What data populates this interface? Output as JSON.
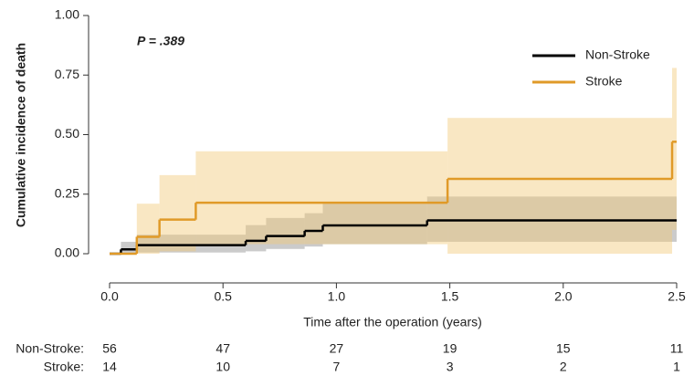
{
  "chart_data": {
    "type": "step",
    "annotation": "P = .389",
    "xlabel": "Time after the operation (years)",
    "ylabel": "Cumulative incidence of death",
    "xlim": [
      0,
      2.5
    ],
    "xticks": [
      {
        "value": 0,
        "label": "0.0"
      },
      0.5,
      {
        "value": 1,
        "label": "1.0"
      },
      1.5,
      {
        "value": 2,
        "label": "2.0"
      },
      2.5
    ],
    "ylim": [
      0,
      1
    ],
    "yticks": [
      {
        "value": 0,
        "label": "0.00"
      },
      0.25,
      {
        "value": 0.5,
        "label": "0.50"
      },
      0.75,
      {
        "value": 1,
        "label": "1.00"
      }
    ],
    "legend": "upper right",
    "series": [
      {
        "name": "Non-Stroke",
        "color": "#000000",
        "band_color": "#8c8c8c",
        "x": [
          0,
          0.05,
          0.12,
          0.6,
          0.69,
          0.86,
          0.94,
          1.4
        ],
        "values": [
          0,
          0.018,
          0.036,
          0.054,
          0.074,
          0.096,
          0.119,
          0.14
        ],
        "lower": [
          0,
          0,
          0.005,
          0.01,
          0.02,
          0.03,
          0.04,
          0.05
        ],
        "upper": [
          0,
          0.05,
          0.08,
          0.12,
          0.15,
          0.17,
          0.21,
          0.24
        ]
      },
      {
        "name": "Stroke",
        "color": "#e09a28",
        "band_color": "#f1c979",
        "x": [
          0,
          0.12,
          0.22,
          0.38,
          1.49,
          2.48
        ],
        "values": [
          0,
          0.071,
          0.143,
          0.214,
          0.314,
          0.47
        ],
        "lower": [
          0,
          0,
          0.01,
          0.04,
          0,
          0.1
        ],
        "upper": [
          0,
          0.21,
          0.33,
          0.43,
          0.57,
          0.78
        ]
      }
    ],
    "risk_table": {
      "times": [
        0,
        0.5,
        1,
        1.5,
        2,
        2.5
      ],
      "rows": [
        {
          "name": "Non-Stroke",
          "values": [
            56,
            47,
            27,
            19,
            15,
            11
          ]
        },
        {
          "name": "Stroke",
          "values": [
            14,
            10,
            7,
            3,
            2,
            1
          ]
        }
      ]
    }
  }
}
